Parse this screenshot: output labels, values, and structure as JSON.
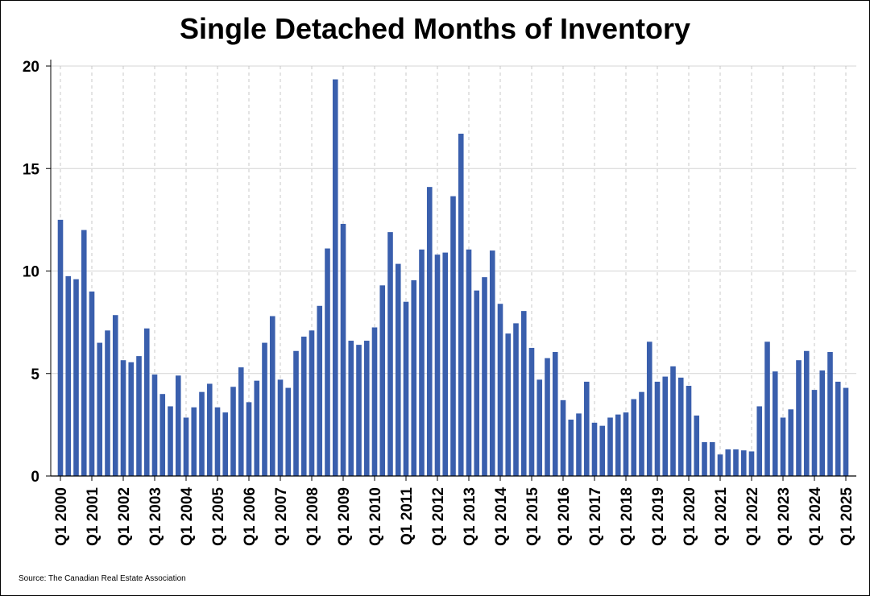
{
  "chart_data": {
    "type": "bar",
    "title": "Single Detached Months of Inventory",
    "source": "Source: The Canadian Real Estate Association",
    "xlabel": "",
    "ylabel": "",
    "ylim": [
      0,
      20
    ],
    "yticks": [
      0,
      5,
      10,
      15,
      20
    ],
    "grid": true,
    "bar_color": "#3a5fad",
    "x_tick_labels": [
      "Q1 2000",
      "Q1 2001",
      "Q1 2002",
      "Q1 2003",
      "Q1 2004",
      "Q1 2005",
      "Q1 2006",
      "Q1 2007",
      "Q1 2008",
      "Q1 2009",
      "Q1 2010",
      "Q1 2011",
      "Q1 2012",
      "Q1 2013",
      "Q1 2014",
      "Q1 2015",
      "Q1 2016",
      "Q1 2017",
      "Q1 2018",
      "Q1 2019",
      "Q1 2020",
      "Q1 2021",
      "Q1 2022",
      "Q1 2023",
      "Q1 2024",
      "Q1 2025"
    ],
    "categories": [
      "Q1 2000",
      "Q2 2000",
      "Q3 2000",
      "Q4 2000",
      "Q1 2001",
      "Q2 2001",
      "Q3 2001",
      "Q4 2001",
      "Q1 2002",
      "Q2 2002",
      "Q3 2002",
      "Q4 2002",
      "Q1 2003",
      "Q2 2003",
      "Q3 2003",
      "Q4 2003",
      "Q1 2004",
      "Q2 2004",
      "Q3 2004",
      "Q4 2004",
      "Q1 2005",
      "Q2 2005",
      "Q3 2005",
      "Q4 2005",
      "Q1 2006",
      "Q2 2006",
      "Q3 2006",
      "Q4 2006",
      "Q1 2007",
      "Q2 2007",
      "Q3 2007",
      "Q4 2007",
      "Q1 2008",
      "Q2 2008",
      "Q3 2008",
      "Q4 2008",
      "Q1 2009",
      "Q2 2009",
      "Q3 2009",
      "Q4 2009",
      "Q1 2010",
      "Q2 2010",
      "Q3 2010",
      "Q4 2010",
      "Q1 2011",
      "Q2 2011",
      "Q3 2011",
      "Q4 2011",
      "Q1 2012",
      "Q2 2012",
      "Q3 2012",
      "Q4 2012",
      "Q1 2013",
      "Q2 2013",
      "Q3 2013",
      "Q4 2013",
      "Q1 2014",
      "Q2 2014",
      "Q3 2014",
      "Q4 2014",
      "Q1 2015",
      "Q2 2015",
      "Q3 2015",
      "Q4 2015",
      "Q1 2016",
      "Q2 2016",
      "Q3 2016",
      "Q4 2016",
      "Q1 2017",
      "Q2 2017",
      "Q3 2017",
      "Q4 2017",
      "Q1 2018",
      "Q2 2018",
      "Q3 2018",
      "Q4 2018",
      "Q1 2019",
      "Q2 2019",
      "Q3 2019",
      "Q4 2019",
      "Q1 2020",
      "Q2 2020",
      "Q3 2020",
      "Q4 2020",
      "Q1 2021",
      "Q2 2021",
      "Q3 2021",
      "Q4 2021",
      "Q1 2022",
      "Q2 2022",
      "Q3 2022",
      "Q4 2022",
      "Q1 2023",
      "Q2 2023",
      "Q3 2023",
      "Q4 2023",
      "Q1 2024",
      "Q2 2024",
      "Q3 2024",
      "Q4 2024",
      "Q1 2025"
    ],
    "values": [
      12.5,
      9.75,
      9.6,
      12.0,
      9.0,
      6.5,
      7.1,
      7.85,
      5.65,
      5.55,
      5.85,
      7.2,
      4.95,
      4.0,
      3.4,
      4.9,
      2.85,
      3.35,
      4.1,
      4.5,
      3.35,
      3.1,
      4.35,
      5.3,
      3.6,
      4.65,
      6.5,
      7.8,
      4.7,
      4.3,
      6.1,
      6.8,
      7.1,
      8.3,
      11.1,
      19.35,
      12.3,
      6.6,
      6.4,
      6.6,
      7.25,
      9.3,
      11.9,
      10.35,
      8.5,
      9.55,
      11.05,
      14.1,
      10.8,
      10.9,
      13.65,
      16.7,
      11.05,
      9.05,
      9.7,
      11.0,
      8.4,
      6.95,
      7.45,
      8.05,
      6.25,
      4.7,
      5.75,
      6.05,
      3.7,
      2.75,
      3.05,
      4.6,
      2.6,
      2.45,
      2.85,
      3.0,
      3.1,
      3.75,
      4.1,
      6.55,
      4.6,
      4.85,
      5.35,
      4.8,
      4.4,
      2.95,
      1.65,
      1.65,
      1.05,
      1.3,
      1.3,
      1.25,
      1.2,
      3.4,
      6.55,
      5.1,
      2.85,
      3.25,
      5.65,
      6.1,
      4.2,
      5.15,
      6.05,
      4.6,
      4.3
    ]
  }
}
